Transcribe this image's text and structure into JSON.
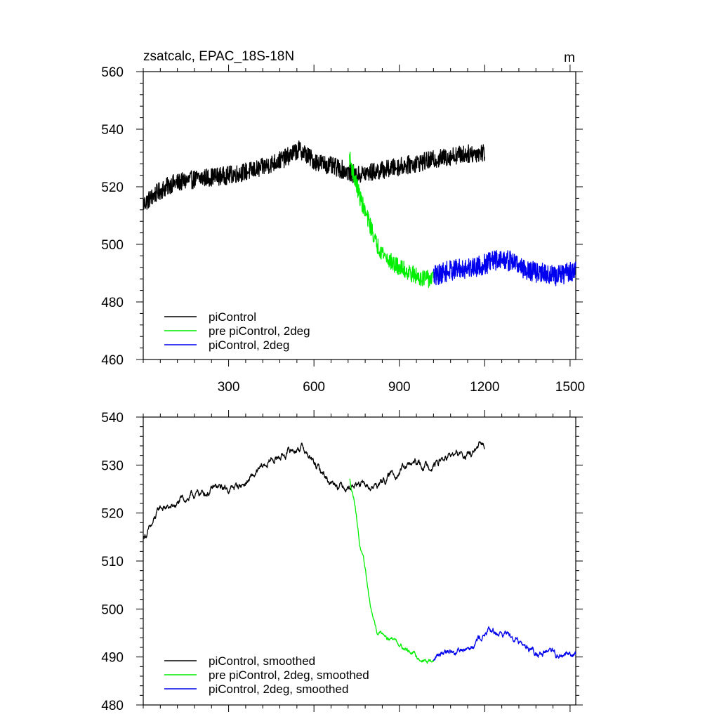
{
  "figure": {
    "title": "zsatcalc, EPAC_18S-18N",
    "units": "m"
  },
  "colors": {
    "piControl": "#000000",
    "pre_piControl_2deg": "#00ee00",
    "piControl_2deg": "#0000ee"
  },
  "chart_data": [
    {
      "type": "line",
      "title": "zsatcalc, EPAC_18S-18N",
      "units_label": "m",
      "xlim": [
        0,
        1520
      ],
      "ylim": [
        460,
        560
      ],
      "xticks": [
        300,
        600,
        900,
        1200,
        1500
      ],
      "yticks": [
        460,
        480,
        500,
        520,
        540,
        560
      ],
      "legend_position": "bottom-left",
      "series": [
        {
          "name": "piControl",
          "color": "#000000",
          "x_range": [
            1,
            1200
          ],
          "noise": 3.2,
          "anchors": [
            [
              1,
              514
            ],
            [
              50,
              518
            ],
            [
              100,
              521
            ],
            [
              200,
              523
            ],
            [
              300,
              524
            ],
            [
              400,
              526
            ],
            [
              500,
              530
            ],
            [
              550,
              533
            ],
            [
              600,
              529
            ],
            [
              700,
              526
            ],
            [
              750,
              524
            ],
            [
              800,
              525
            ],
            [
              900,
              527
            ],
            [
              1000,
              529
            ],
            [
              1100,
              531
            ],
            [
              1200,
              532
            ]
          ]
        },
        {
          "name": "pre piControl, 2deg",
          "color": "#00ee00",
          "x_range": [
            725,
            1020
          ],
          "noise": 3.0,
          "anchors": [
            [
              725,
              530
            ],
            [
              740,
              524
            ],
            [
              760,
              517
            ],
            [
              780,
              511
            ],
            [
              800,
              506
            ],
            [
              820,
              500
            ],
            [
              850,
              496
            ],
            [
              880,
              493
            ],
            [
              920,
              491
            ],
            [
              960,
              489
            ],
            [
              1000,
              488
            ],
            [
              1020,
              488
            ]
          ]
        },
        {
          "name": "piControl, 2deg",
          "color": "#0000ee",
          "x_range": [
            1020,
            1520
          ],
          "noise": 3.6,
          "anchors": [
            [
              1020,
              489
            ],
            [
              1080,
              491
            ],
            [
              1150,
              492
            ],
            [
              1200,
              493
            ],
            [
              1250,
              495
            ],
            [
              1300,
              494
            ],
            [
              1350,
              491
            ],
            [
              1400,
              490
            ],
            [
              1450,
              489
            ],
            [
              1520,
              491
            ]
          ]
        }
      ]
    },
    {
      "type": "line",
      "title": "",
      "xlim": [
        0,
        1520
      ],
      "ylim": [
        480,
        540
      ],
      "xticks": [
        300,
        600,
        900,
        1200,
        1500
      ],
      "yticks": [
        480,
        490,
        500,
        510,
        520,
        530,
        540
      ],
      "legend_position": "bottom-left",
      "series": [
        {
          "name": "piControl, smoothed",
          "color": "#000000",
          "x_range": [
            1,
            1200
          ],
          "noise": 1.2,
          "anchors": [
            [
              1,
              515
            ],
            [
              30,
              517
            ],
            [
              60,
              521
            ],
            [
              100,
              521
            ],
            [
              150,
              523
            ],
            [
              200,
              524
            ],
            [
              250,
              525
            ],
            [
              300,
              525
            ],
            [
              350,
              526
            ],
            [
              400,
              528
            ],
            [
              450,
              531
            ],
            [
              520,
              533
            ],
            [
              560,
              534
            ],
            [
              600,
              530
            ],
            [
              650,
              527
            ],
            [
              700,
              526
            ],
            [
              750,
              526
            ],
            [
              800,
              525
            ],
            [
              850,
              527
            ],
            [
              900,
              529
            ],
            [
              950,
              530
            ],
            [
              1000,
              530
            ],
            [
              1050,
              531
            ],
            [
              1100,
              532
            ],
            [
              1150,
              532
            ],
            [
              1200,
              534
            ]
          ]
        },
        {
          "name": "pre piControl, 2deg, smoothed",
          "color": "#00ee00",
          "x_range": [
            725,
            1020
          ],
          "noise": 0.8,
          "anchors": [
            [
              725,
              527
            ],
            [
              745,
              522
            ],
            [
              760,
              514
            ],
            [
              780,
              508
            ],
            [
              800,
              500
            ],
            [
              820,
              495
            ],
            [
              850,
              495
            ],
            [
              880,
              494
            ],
            [
              920,
              492
            ],
            [
              960,
              490
            ],
            [
              1000,
              489
            ],
            [
              1020,
              489
            ]
          ]
        },
        {
          "name": "piControl, 2deg, smoothed",
          "color": "#0000ee",
          "x_range": [
            1020,
            1520
          ],
          "noise": 1.1,
          "anchors": [
            [
              1020,
              489
            ],
            [
              1060,
              492
            ],
            [
              1100,
              491
            ],
            [
              1150,
              493
            ],
            [
              1200,
              495
            ],
            [
              1250,
              495
            ],
            [
              1300,
              495
            ],
            [
              1350,
              492
            ],
            [
              1400,
              491
            ],
            [
              1450,
              490
            ],
            [
              1520,
              491
            ]
          ]
        }
      ]
    }
  ]
}
